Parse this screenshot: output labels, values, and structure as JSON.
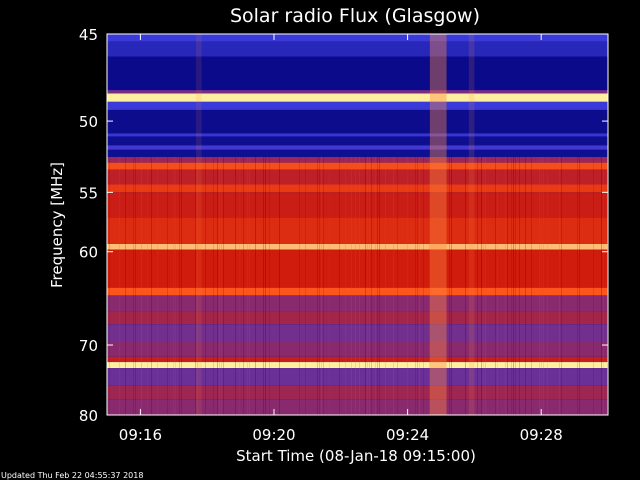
{
  "chart_data": {
    "type": "heatmap",
    "title": "Solar radio Flux (Glasgow)",
    "ylabel": "Frequency [MHz]",
    "xlabel": "Start Time (08-Jan-18 09:15:00)",
    "footer": "Updated Thu Feb 22 04:55:37 2018",
    "y_axis": {
      "range": [
        45,
        80
      ],
      "reciprocal_scale": true,
      "ticks": [
        {
          "value": 45,
          "label": "45"
        },
        {
          "value": 50,
          "label": "50"
        },
        {
          "value": 55,
          "label": "55"
        },
        {
          "value": 60,
          "label": "60"
        },
        {
          "value": 70,
          "label": "70"
        },
        {
          "value": 80,
          "label": "80"
        }
      ]
    },
    "x_axis": {
      "range": [
        "09:15:00",
        "09:30:00"
      ],
      "ticks": [
        {
          "value": "09:16:00",
          "label": "09:16"
        },
        {
          "value": "09:20:00",
          "label": "09:20"
        },
        {
          "value": "09:24:00",
          "label": "09:24"
        },
        {
          "value": "09:28:00",
          "label": "09:28"
        }
      ]
    },
    "colors": {
      "low": "#00007a",
      "mid_low": "#3a3ad8",
      "mid": "#8a2a6e",
      "mid_high": "#d01c0c",
      "high": "#ff5a1e",
      "peak": "#fff0a0"
    },
    "frequency_bands": [
      {
        "from": 45,
        "to": 45.4,
        "level": 0.3
      },
      {
        "from": 45.4,
        "to": 46.2,
        "level": 0.2
      },
      {
        "from": 46.2,
        "to": 48.1,
        "level": 0.05
      },
      {
        "from": 48.1,
        "to": 48.3,
        "level": 0.45
      },
      {
        "from": 48.3,
        "to": 48.8,
        "level": 1.0
      },
      {
        "from": 48.8,
        "to": 49.3,
        "level": 0.3
      },
      {
        "from": 49.3,
        "to": 50.8,
        "level": 0.06
      },
      {
        "from": 50.8,
        "to": 51.0,
        "level": 0.28
      },
      {
        "from": 51.0,
        "to": 51.6,
        "level": 0.07
      },
      {
        "from": 51.6,
        "to": 51.9,
        "level": 0.32
      },
      {
        "from": 51.9,
        "to": 52.4,
        "level": 0.08
      },
      {
        "from": 52.4,
        "to": 52.8,
        "level": 0.55
      },
      {
        "from": 52.8,
        "to": 53.3,
        "level": 0.85
      },
      {
        "from": 53.3,
        "to": 54.4,
        "level": 0.66
      },
      {
        "from": 54.4,
        "to": 55.0,
        "level": 0.8
      },
      {
        "from": 55.0,
        "to": 57.0,
        "level": 0.7
      },
      {
        "from": 57.0,
        "to": 59.3,
        "level": 0.76
      },
      {
        "from": 59.3,
        "to": 59.8,
        "level": 0.96
      },
      {
        "from": 59.8,
        "to": 63.5,
        "level": 0.72
      },
      {
        "from": 63.5,
        "to": 64.3,
        "level": 0.87
      },
      {
        "from": 64.3,
        "to": 66.0,
        "level": 0.5
      },
      {
        "from": 66.0,
        "to": 67.5,
        "level": 0.58
      },
      {
        "from": 67.5,
        "to": 69.5,
        "level": 0.44
      },
      {
        "from": 69.5,
        "to": 71.5,
        "level": 0.5
      },
      {
        "from": 71.5,
        "to": 72.2,
        "level": 0.68
      },
      {
        "from": 72.2,
        "to": 73.0,
        "level": 1.0
      },
      {
        "from": 73.0,
        "to": 75.5,
        "level": 0.42
      },
      {
        "from": 75.5,
        "to": 77.5,
        "level": 0.56
      },
      {
        "from": 77.5,
        "to": 80.0,
        "level": 0.5
      }
    ],
    "burst_activity": [
      {
        "from": "09:24:40",
        "to": "09:25:10",
        "level": 0.4
      },
      {
        "from": "09:25:50",
        "to": "09:26:00",
        "level": 0.15
      },
      {
        "from": "09:17:40",
        "to": "09:17:50",
        "level": 0.12
      }
    ]
  }
}
